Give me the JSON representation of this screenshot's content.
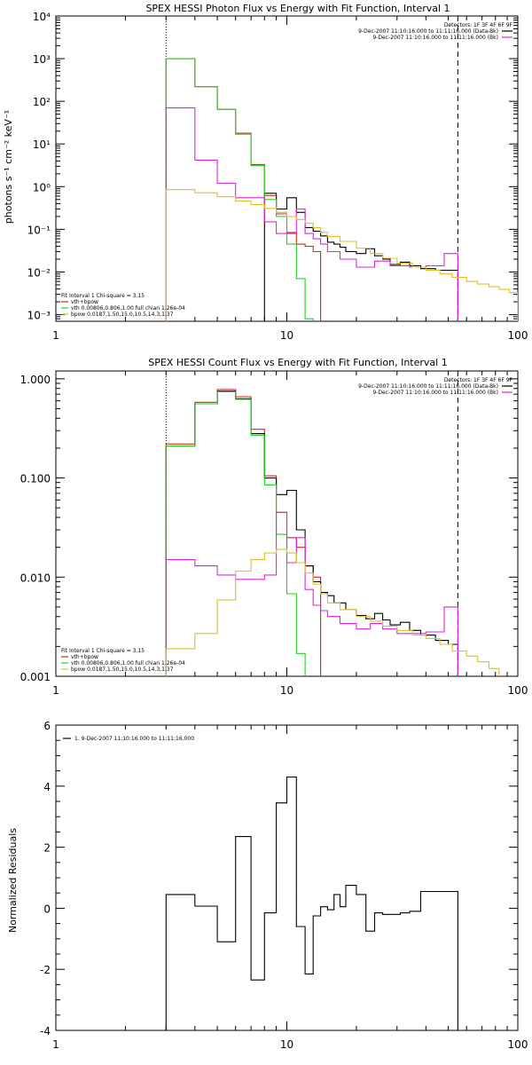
{
  "chart_data": [
    {
      "id": "photon",
      "type": "line",
      "step": true,
      "title": "SPEX HESSI Photon Flux vs Energy with Fit Function, Interval 1",
      "xlabel": "",
      "ylabel": "photons s⁻¹ cm⁻² keV⁻¹",
      "xscale": "log",
      "yscale": "log",
      "xlim": [
        1,
        100
      ],
      "ylim": [
        0.0007,
        10000
      ],
      "xticks": [
        1,
        10,
        100
      ],
      "xtick_labels": [
        "1",
        "10",
        "100"
      ],
      "yticks": [
        0.001,
        0.01,
        0.1,
        1,
        10,
        100,
        1000,
        10000
      ],
      "ytick_labels": [
        "10⁻³",
        "10⁻²",
        "10⁻¹",
        "10⁰",
        "10¹",
        "10²",
        "10³",
        "10⁴"
      ],
      "vlines": [
        {
          "x": 3.0,
          "style": "dotted",
          "color": "#000000"
        },
        {
          "x": 55.0,
          "style": "dashed",
          "color": "#000000"
        }
      ],
      "legend_top": [
        {
          "text": "Detectors: 1F 3F 4F 6F 9F",
          "color": null
        },
        {
          "text": "9-Dec-2007 11:10:16.000 to 11:11:16.000 (Data-Bk)",
          "color": "#000000"
        },
        {
          "text": "9-Dec-2007 11:10:16.000 to 11:11:16.000 (Bk)",
          "color": "#e020e0"
        }
      ],
      "legend_bottom": [
        {
          "text": "Fit Interval 1    Chi-square = 3.15",
          "color": null
        },
        {
          "text": "vth+bpow",
          "color": "#e02020"
        },
        {
          "text": "vth 0.00806,0.806,1.00   full chian 1.26e-04",
          "color": "#20d020"
        },
        {
          "text": "bpow 0.0187,1.50,15.0,10.5,14.3,1.37",
          "color": "#e0c020"
        }
      ],
      "series": [
        {
          "name": "vth+bpow",
          "color": "#e02020",
          "edges": [
            3.0,
            4.0,
            5.0,
            6.0,
            7.0,
            8.0,
            9.0,
            10.0,
            11.0,
            12.0,
            13.0,
            14.0
          ],
          "values": [
            1000,
            220,
            65,
            18,
            3.3,
            0.62,
            0.23,
            0.08,
            0.045,
            0.04,
            0.03
          ]
        },
        {
          "name": "Data-Bk",
          "color": "#000000",
          "edges": [
            8.0,
            9.0,
            10.0,
            11.0,
            12.0,
            13.0,
            14.0,
            15.0,
            16.0,
            17.0,
            18.0,
            20.0,
            22.0,
            24.0,
            26.0,
            28.0,
            31.0,
            34.0,
            38.0,
            44.0,
            50.0,
            55.0
          ],
          "values": [
            0.7,
            0.3,
            0.55,
            0.25,
            0.11,
            0.09,
            0.07,
            0.05,
            0.045,
            0.038,
            0.03,
            0.027,
            0.035,
            0.024,
            0.02,
            0.015,
            0.017,
            0.014,
            0.012,
            0.011,
            0.011
          ]
        },
        {
          "name": "vth",
          "color": "#20d020",
          "edges": [
            3.0,
            4.0,
            5.0,
            6.0,
            7.0,
            8.0,
            9.0,
            10.0,
            11.0,
            12.0,
            13.0
          ],
          "values": [
            1000,
            220,
            65,
            17,
            3.1,
            0.5,
            0.2,
            0.045,
            0.007,
            0.0008
          ]
        },
        {
          "name": "Bk",
          "color": "#e020e0",
          "edges": [
            3.0,
            4.0,
            5.0,
            6.0,
            7.0,
            8.0,
            9.0,
            10.0,
            11.0,
            12.0,
            13.0,
            14.0,
            15.0,
            17.0,
            20.0,
            24.0,
            28.0,
            34.0,
            40.0,
            48.0,
            55.0
          ],
          "values": [
            70,
            4.2,
            1.2,
            0.55,
            0.55,
            0.15,
            0.08,
            0.085,
            0.3,
            0.08,
            0.06,
            0.045,
            0.03,
            0.02,
            0.013,
            0.018,
            0.014,
            0.013,
            0.014,
            0.027
          ]
        },
        {
          "name": "bpow",
          "color": "#e0c020",
          "edges": [
            3.0,
            4.0,
            5.0,
            6.0,
            7.0,
            8.0,
            9.0,
            10.0,
            11.0,
            12.0,
            13.0,
            14.0,
            15.0,
            17.0,
            20.0,
            23.0,
            26.0,
            30.0,
            35.0,
            40.0,
            46.0,
            52.0,
            60.0,
            67.0,
            75.0,
            83.0,
            92.0,
            100.0
          ],
          "values": [
            0.85,
            0.72,
            0.58,
            0.46,
            0.38,
            0.31,
            0.25,
            0.2,
            0.17,
            0.14,
            0.11,
            0.085,
            0.068,
            0.052,
            0.036,
            0.027,
            0.021,
            0.016,
            0.013,
            0.011,
            0.009,
            0.0075,
            0.006,
            0.0052,
            0.0045,
            0.0039,
            0.0033
          ]
        }
      ]
    },
    {
      "id": "count",
      "type": "line",
      "step": true,
      "title": "SPEX HESSI Count Flux vs Energy with Fit Function, Interval 1",
      "xlabel": "",
      "ylabel": "",
      "xscale": "log",
      "yscale": "log",
      "xlim": [
        1,
        100
      ],
      "ylim": [
        0.001,
        1.2
      ],
      "xticks": [
        1,
        10,
        100
      ],
      "xtick_labels": [
        "1",
        "10",
        "100"
      ],
      "yticks": [
        0.001,
        0.01,
        0.1,
        1
      ],
      "ytick_labels": [
        "0.001",
        "0.010",
        "0.100",
        "1.000"
      ],
      "vlines": [
        {
          "x": 3.0,
          "style": "dotted",
          "color": "#000000"
        },
        {
          "x": 55.0,
          "style": "dashed",
          "color": "#000000"
        }
      ],
      "legend_top": [
        {
          "text": "Detectors: 1F 3F 4F 6F 9F",
          "color": null
        },
        {
          "text": "9-Dec-2007 11:10:16.000 to 11:11:16.000 (Data-Bk)",
          "color": "#000000"
        },
        {
          "text": "9-Dec-2007 11:10:16.000 to 11:11:16.000 (Bk)",
          "color": "#e020e0"
        }
      ],
      "legend_bottom": [
        {
          "text": "Fit Interval 1    Chi-square = 3.15",
          "color": null
        },
        {
          "text": "vth+bpow",
          "color": "#e02020"
        },
        {
          "text": "vth 0.00806,0.806,1.00   full chian 1.26e-04",
          "color": "#20d020"
        },
        {
          "text": "bpow 0.0187,1.50,15.0,10.5,14.3,1.37",
          "color": "#e0c020"
        }
      ],
      "series": [
        {
          "name": "vth+bpow",
          "color": "#e02020",
          "edges": [
            3.0,
            4.0,
            5.0,
            6.0,
            7.0,
            8.0,
            9.0,
            10.0,
            11.0,
            12.0,
            13.0,
            14.0
          ],
          "values": [
            0.22,
            0.58,
            0.78,
            0.66,
            0.31,
            0.105,
            0.045,
            0.025,
            0.02,
            0.013,
            0.01
          ]
        },
        {
          "name": "Data-Bk",
          "color": "#000000",
          "edges": [
            3.0,
            4.0,
            5.0,
            6.0,
            7.0,
            8.0,
            9.0,
            10.0,
            11.0,
            12.0,
            13.0,
            14.0,
            15.0,
            16.0,
            17.0,
            18.0,
            20.0,
            22.0,
            24.0,
            26.0,
            28.0,
            31.0,
            34.0,
            38.0,
            44.0,
            50.0,
            55.0
          ],
          "values": [
            0.21,
            0.56,
            0.75,
            0.63,
            0.28,
            0.1,
            0.068,
            0.075,
            0.03,
            0.013,
            0.009,
            0.007,
            0.0065,
            0.0055,
            0.0055,
            0.0047,
            0.0041,
            0.0038,
            0.0043,
            0.0037,
            0.0033,
            0.0035,
            0.0029,
            0.0026,
            0.0023,
            0.0021
          ]
        },
        {
          "name": "vth",
          "color": "#20d020",
          "edges": [
            3.0,
            4.0,
            5.0,
            6.0,
            7.0,
            8.0,
            9.0,
            10.0,
            11.0,
            12.0
          ],
          "values": [
            0.21,
            0.56,
            0.74,
            0.62,
            0.27,
            0.085,
            0.027,
            0.0068,
            0.0017
          ]
        },
        {
          "name": "Bk",
          "color": "#e020e0",
          "edges": [
            3.0,
            4.0,
            5.0,
            6.0,
            7.0,
            8.0,
            9.0,
            10.0,
            11.0,
            12.0,
            13.0,
            14.0,
            15.0,
            17.0,
            20.0,
            23.0,
            26.0,
            30.0,
            35.0,
            40.0,
            48.0,
            55.0
          ],
          "values": [
            0.015,
            0.013,
            0.0105,
            0.0095,
            0.0095,
            0.0105,
            0.045,
            0.014,
            0.025,
            0.0075,
            0.0052,
            0.0046,
            0.004,
            0.0034,
            0.003,
            0.0034,
            0.003,
            0.0027,
            0.0027,
            0.0028,
            0.005
          ]
        },
        {
          "name": "bpow",
          "color": "#e0c020",
          "edges": [
            3.0,
            4.0,
            5.0,
            6.0,
            7.0,
            8.0,
            9.0,
            10.0,
            11.0,
            12.0,
            13.0,
            14.0,
            15.0,
            17.0,
            20.0,
            23.0,
            26.0,
            30.0,
            35.0,
            40.0,
            46.0,
            52.0,
            60.0,
            67.0,
            75.0,
            83.0
          ],
          "values": [
            0.0019,
            0.0027,
            0.0059,
            0.0115,
            0.015,
            0.0175,
            0.019,
            0.0175,
            0.014,
            0.011,
            0.0085,
            0.0068,
            0.0055,
            0.0047,
            0.004,
            0.0036,
            0.0032,
            0.0029,
            0.0026,
            0.0024,
            0.0021,
            0.0018,
            0.0016,
            0.0014,
            0.0012
          ]
        }
      ]
    },
    {
      "id": "residuals",
      "type": "line",
      "step": true,
      "title": "",
      "xlabel": "",
      "ylabel": "Normalized Residuals",
      "xscale": "log",
      "yscale": "linear",
      "xlim": [
        1,
        100
      ],
      "ylim": [
        -4,
        6
      ],
      "xticks": [
        1,
        10,
        100
      ],
      "xtick_labels": [
        "1",
        "10",
        "100"
      ],
      "yticks": [
        -4,
        -2,
        0,
        2,
        4,
        6
      ],
      "ytick_labels": [
        "-4",
        "-2",
        "0",
        "2",
        "4",
        "6"
      ],
      "vlines": [],
      "legend_top": [],
      "legend_left": [
        {
          "text": "1.  9-Dec-2007 11:10:16.000 to 11:11:16.000",
          "color": "#000000"
        }
      ],
      "legend_bottom": [],
      "series": [
        {
          "name": "1.  9-Dec-2007 11:10:16.000 to 11:11:16.000",
          "color": "#000000",
          "drop_to_min": true,
          "edges": [
            3.0,
            4.0,
            5.0,
            6.0,
            7.0,
            8.0,
            9.0,
            10.0,
            11.0,
            12.0,
            13.0,
            14.0,
            15.0,
            16.0,
            17.0,
            18.0,
            20.0,
            22.0,
            24.0,
            26.0,
            28.0,
            31.0,
            34.0,
            38.0,
            44.0,
            50.0,
            55.0
          ],
          "values": [
            0.45,
            0.07,
            -1.1,
            2.35,
            -2.35,
            -0.15,
            3.45,
            4.3,
            -0.6,
            -2.15,
            -0.25,
            0.05,
            -0.05,
            0.45,
            0.05,
            0.75,
            0.45,
            -0.75,
            -0.15,
            -0.2,
            -0.2,
            -0.15,
            -0.1,
            0.55,
            0.55,
            0.55
          ]
        }
      ]
    }
  ]
}
